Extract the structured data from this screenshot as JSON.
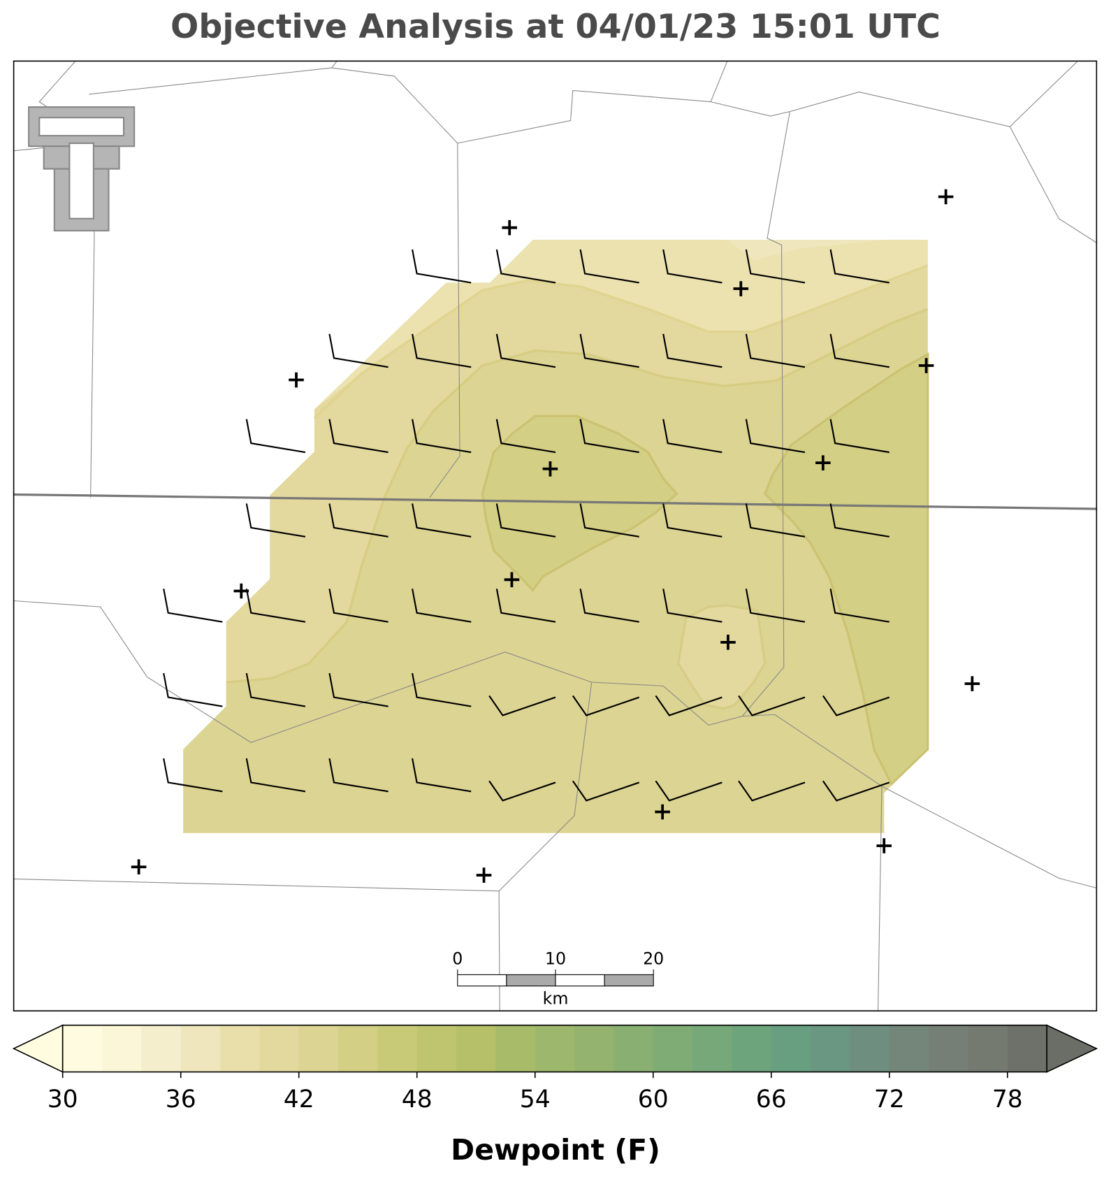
{
  "title": "Objective Analysis at 04/01/23 15:01 UTC",
  "colorbar": {
    "label": "Dewpoint (F)",
    "range": [
      30,
      80
    ],
    "ticks": [
      30,
      36,
      42,
      48,
      54,
      60,
      66,
      72,
      78
    ],
    "colors": [
      "#fffbe0",
      "#fcf6d8",
      "#f5eecc",
      "#efe6bd",
      "#e9dfaa",
      "#e3d89d",
      "#dcd492",
      "#d3cf85",
      "#c8ca78",
      "#bfc46e",
      "#b5c068",
      "#a8bb69",
      "#9db86c",
      "#93b36f",
      "#89b072",
      "#7fab75",
      "#76a879",
      "#6ea47c",
      "#689f80",
      "#6a9782",
      "#6e8e7f",
      "#738679",
      "#767f76",
      "#757a71",
      "#6e7169"
    ],
    "under_color": "#fffce0",
    "over_color": "#6a6e66"
  },
  "scalebar": {
    "range": [
      0,
      20
    ],
    "ticks": [
      0,
      10,
      20
    ],
    "unit": "km"
  }
}
